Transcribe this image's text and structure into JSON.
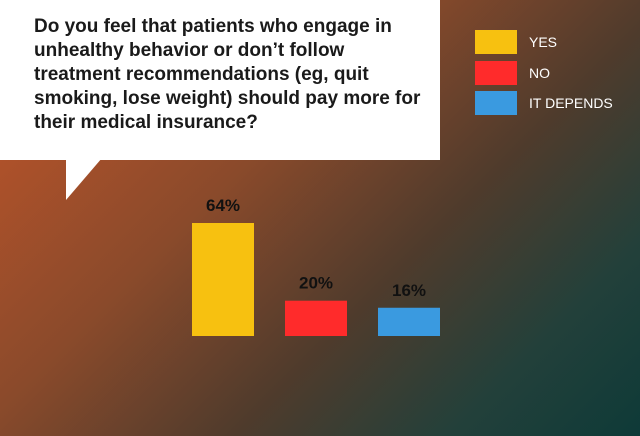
{
  "question": "Do you feel that patients who engage in unhealthy behavior or don’t follow treatment recommendations (eg, quit smoking, lose weight) should pay more for their medical insurance?",
  "legend": [
    {
      "label": "YES",
      "color": "#f7c110"
    },
    {
      "label": "NO",
      "color": "#ff2b2b"
    },
    {
      "label": "IT DEPENDS",
      "color": "#3a9ae0"
    }
  ],
  "chart_data": {
    "type": "bar",
    "categories": [
      "YES",
      "NO",
      "IT DEPENDS"
    ],
    "values": [
      64,
      20,
      16
    ],
    "value_labels": [
      "64%",
      "20%",
      "16%"
    ],
    "colors": [
      "#f7c110",
      "#ff2b2b",
      "#3a9ae0"
    ],
    "title": "",
    "xlabel": "",
    "ylabel": "",
    "ylim": [
      0,
      100
    ],
    "grid": false,
    "legend_position": "top-right"
  }
}
